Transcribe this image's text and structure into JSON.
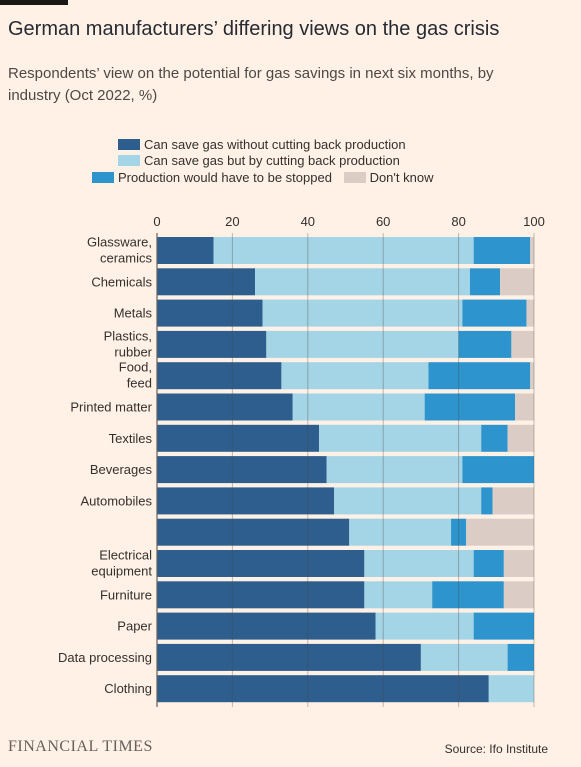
{
  "header": {
    "title": "German manufacturers’ differing views on the gas crisis",
    "subtitle": "Respondents’ view on the potential for gas savings in next six months, by industry (Oct 2022, %)"
  },
  "legend": {
    "items": [
      {
        "label": "Can save gas without cutting back production",
        "color": "#2d5e8e"
      },
      {
        "label": "Can save gas but by cutting back production",
        "color": "#a3d5e6"
      },
      {
        "label": "Production would have to be stopped",
        "color": "#2e94cd"
      },
      {
        "label": "Don't know",
        "color": "#dbcdc5"
      }
    ]
  },
  "chart_data": {
    "type": "bar",
    "orientation": "horizontal",
    "stacked": true,
    "categories": [
      "Glassware, ceramics",
      "Chemicals",
      "Metals",
      "Plastics, rubber",
      "Food, feed",
      "Printed matter",
      "Textiles",
      "Beverages",
      "Automobiles",
      "",
      "Electrical equipment",
      "Furniture",
      "Paper",
      "Data processing",
      "Clothing"
    ],
    "series": [
      {
        "name": "Can save gas without cutting back production",
        "color": "#2d5e8e",
        "values": [
          15,
          26,
          28,
          29,
          33,
          36,
          43,
          45,
          47,
          51,
          55,
          55,
          58,
          70,
          88
        ]
      },
      {
        "name": "Can save gas but by cutting back production",
        "color": "#a3d5e6",
        "values": [
          69,
          57,
          53,
          51,
          39,
          35,
          43,
          36,
          39,
          27,
          29,
          18,
          26,
          23,
          12
        ]
      },
      {
        "name": "Production would have to be stopped",
        "color": "#2e94cd",
        "values": [
          15,
          8,
          17,
          14,
          27,
          24,
          7,
          19,
          3,
          4,
          8,
          19,
          16,
          7,
          0
        ]
      },
      {
        "name": "Don't know",
        "color": "#dbcdc5",
        "values": [
          1,
          9,
          2,
          6,
          1,
          5,
          7,
          0,
          11,
          18,
          8,
          8,
          0,
          0,
          0
        ]
      }
    ],
    "xlim": [
      0,
      100
    ],
    "xticks": [
      0,
      20,
      40,
      60,
      80,
      100
    ],
    "grid": true
  },
  "footer": {
    "brand": "FINANCIAL TIMES",
    "source": "Source: Ifo Institute"
  }
}
